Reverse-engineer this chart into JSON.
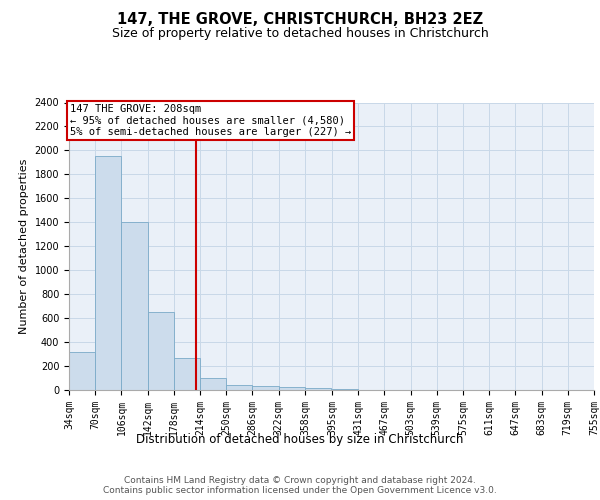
{
  "title": "147, THE GROVE, CHRISTCHURCH, BH23 2EZ",
  "subtitle": "Size of property relative to detached houses in Christchurch",
  "xlabel": "Distribution of detached houses by size in Christchurch",
  "ylabel": "Number of detached properties",
  "bin_edges": [
    34,
    70,
    106,
    142,
    178,
    214,
    250,
    286,
    322,
    358,
    395,
    431,
    467,
    503,
    539,
    575,
    611,
    647,
    683,
    719,
    755
  ],
  "bar_heights": [
    320,
    1950,
    1400,
    650,
    270,
    100,
    45,
    35,
    25,
    15,
    5,
    3,
    2,
    1,
    1,
    0,
    0,
    0,
    0,
    0
  ],
  "bar_color": "#ccdcec",
  "bar_edge_color": "#7aaac8",
  "grid_color": "#c8d8e8",
  "property_size": 208,
  "vline_color": "#cc0000",
  "annotation_text": "147 THE GROVE: 208sqm\n← 95% of detached houses are smaller (4,580)\n5% of semi-detached houses are larger (227) →",
  "annotation_box_color": "#cc0000",
  "ylim": [
    0,
    2400
  ],
  "yticks": [
    0,
    200,
    400,
    600,
    800,
    1000,
    1200,
    1400,
    1600,
    1800,
    2000,
    2200,
    2400
  ],
  "background_color": "#eaf0f8",
  "footer_text": "Contains HM Land Registry data © Crown copyright and database right 2024.\nContains public sector information licensed under the Open Government Licence v3.0.",
  "title_fontsize": 10.5,
  "subtitle_fontsize": 9,
  "xlabel_fontsize": 8.5,
  "ylabel_fontsize": 8,
  "tick_fontsize": 7,
  "annotation_fontsize": 7.5,
  "footer_fontsize": 6.5
}
